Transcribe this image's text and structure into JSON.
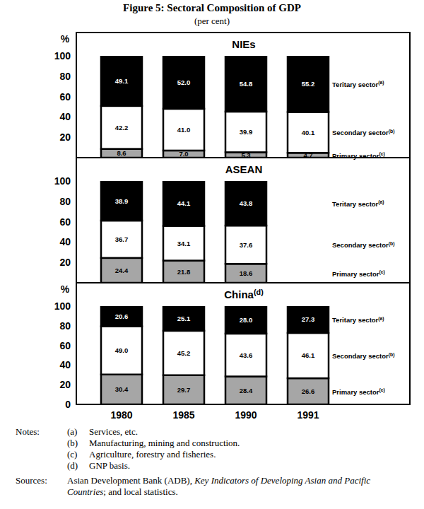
{
  "figure": {
    "title": "Figure 5: Sectoral Composition of GDP",
    "subtitle": "(per cent)",
    "notes_label": "Notes:",
    "notes": [
      {
        "mark": "(a)",
        "text": "Services, etc."
      },
      {
        "mark": "(b)",
        "text": "Manufacturing, mining and construction."
      },
      {
        "mark": "(c)",
        "text": "Agriculture, forestry and fisheries."
      },
      {
        "mark": "(d)",
        "text": "GNP basis."
      }
    ],
    "sources_label": "Sources:",
    "sources": [
      "Asian Development Bank (ADB), ",
      "Key Indicators of Developing Asian and Pacific Countries",
      "; and local statistics."
    ]
  },
  "chart_data": [
    {
      "type": "bar",
      "stacked": true,
      "data_labels": true,
      "title": "NIEs",
      "ylabel": "%",
      "categories": [
        "1980",
        "1985",
        "1990",
        "1991"
      ],
      "tick_labels": "y",
      "grid": false,
      "ylim": [
        0,
        100
      ],
      "yticks": [
        20,
        40,
        60,
        80,
        100
      ],
      "series": [
        {
          "name": "Primary sector(c)",
          "color": "#a6a6a6",
          "values": [
            8.6,
            7,
            5.3,
            4.7
          ],
          "value_labels": [
            "8.6",
            "7.0",
            "5.3",
            "4.7"
          ]
        },
        {
          "name": "Secondary sector(b)",
          "color": "#ffffff",
          "values": [
            42.2,
            41,
            39.9,
            40.1
          ],
          "value_labels": [
            "42.2",
            "41.0",
            "39.9",
            "40.1"
          ]
        },
        {
          "name": "Teritary sector(a)",
          "color": "#000000",
          "values": [
            49.1,
            52,
            54.8,
            55.2
          ],
          "value_labels": [
            "49.1",
            "52.0",
            "54.8",
            "55.2"
          ]
        }
      ]
    },
    {
      "type": "bar",
      "stacked": true,
      "data_labels": true,
      "title": "ASEAN",
      "categories": [
        "1980",
        "1985",
        "1990",
        "1991"
      ],
      "tick_labels": "y",
      "grid": false,
      "ylim": [
        0,
        100
      ],
      "yticks": [
        20,
        40,
        60,
        80,
        100
      ],
      "series": [
        {
          "name": "Primary sector(c)",
          "color": "#a6a6a6",
          "values": [
            24.4,
            21.8,
            18.6,
            null
          ],
          "value_labels": [
            "24.4",
            "21.8",
            "18.6",
            null
          ]
        },
        {
          "name": "Secondary sector(b)",
          "color": "#ffffff",
          "values": [
            36.7,
            34.1,
            37.6,
            null
          ],
          "value_labels": [
            "36.7",
            "34.1",
            "37.6",
            null
          ]
        },
        {
          "name": "Teritary sector(a)",
          "color": "#000000",
          "values": [
            38.9,
            44.1,
            43.8,
            null
          ],
          "value_labels": [
            "38.9",
            "44.1",
            "43.8",
            null
          ]
        }
      ]
    },
    {
      "type": "bar",
      "stacked": true,
      "data_labels": true,
      "title": "China(d)",
      "ylabel": "%",
      "categories": [
        "1980",
        "1985",
        "1990",
        "1991"
      ],
      "tick_labels": true,
      "grid": false,
      "ylim": [
        0,
        100
      ],
      "yticks": [
        0,
        20,
        40,
        60,
        80,
        100
      ],
      "series": [
        {
          "name": "Primary sector(c)",
          "color": "#a6a6a6",
          "values": [
            30.4,
            29.7,
            28.4,
            26.6
          ],
          "value_labels": [
            "30.4",
            "29.7",
            "28.4",
            "26.6"
          ]
        },
        {
          "name": "Secondary sector(b)",
          "color": "#ffffff",
          "values": [
            49,
            45.2,
            43.6,
            46.1
          ],
          "value_labels": [
            "49.0",
            "45.2",
            "43.6",
            "46.1"
          ]
        },
        {
          "name": "Teritary sector(a)",
          "color": "#000000",
          "values": [
            20.6,
            25.1,
            28,
            27.3
          ],
          "value_labels": [
            "20.6",
            "25.1",
            "28.0",
            "27.3"
          ]
        }
      ]
    }
  ]
}
